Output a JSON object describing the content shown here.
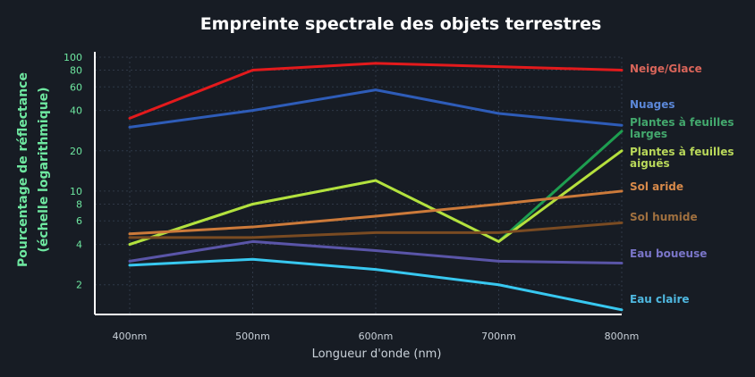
{
  "chart_data": {
    "type": "line",
    "title": "Empreinte spectrale des objets terrestres",
    "xlabel": "Longueur d'onde (nm)",
    "ylabel": [
      "Pourcentage de réflectance",
      "(échelle logarithmique)"
    ],
    "y_scale": "log",
    "ylim": [
      1.2,
      100
    ],
    "x": [
      "400nm",
      "500nm",
      "600nm",
      "700nm",
      "800nm"
    ],
    "y_ticks": [
      2,
      4,
      6,
      8,
      10,
      20,
      40,
      60,
      80,
      100
    ],
    "grid": true,
    "legend": "inline-right",
    "series": [
      {
        "name": "Neige/Glace",
        "color": "#e31a1c",
        "label_color": "#d9655a",
        "values": [
          35,
          80,
          90,
          85,
          80
        ]
      },
      {
        "name": "Nuages",
        "color": "#2e5cb8",
        "label_color": "#5b87d8",
        "values": [
          30,
          40,
          57,
          38,
          31
        ]
      },
      {
        "name": [
          "Plantes à feuilles",
          "larges"
        ],
        "color": "#1e9e50",
        "label_color": "#43a86d",
        "values": [
          4,
          8,
          12,
          4.2,
          28
        ]
      },
      {
        "name": [
          "Plantes à feuilles",
          "aiguës"
        ],
        "color": "#b5e03d",
        "label_color": "#b9d85a",
        "values": [
          4,
          8,
          12,
          4.2,
          20
        ]
      },
      {
        "name": "Sol aride",
        "color": "#cc7a3a",
        "label_color": "#d88a4a",
        "values": [
          4.8,
          5.4,
          6.5,
          8,
          10
        ]
      },
      {
        "name": "Sol humide",
        "color": "#7a4b22",
        "label_color": "#a0703f",
        "values": [
          4.5,
          4.5,
          4.9,
          4.9,
          5.8
        ]
      },
      {
        "name": "Eau boueuse",
        "color": "#5a55a8",
        "label_color": "#7a75c8",
        "values": [
          3,
          4.2,
          3.6,
          3,
          2.9
        ]
      },
      {
        "name": "Eau claire",
        "color": "#38c8f0",
        "label_color": "#4fb8e0",
        "values": [
          2.8,
          3.1,
          2.6,
          2,
          1.3
        ]
      }
    ]
  }
}
